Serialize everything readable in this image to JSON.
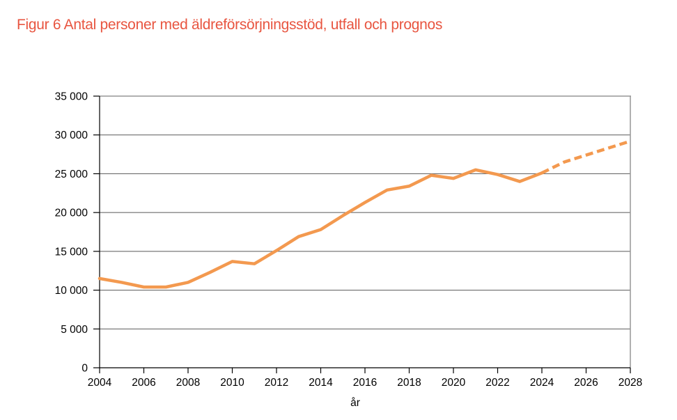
{
  "page": {
    "title": "Figur 6 Antal personer med äldreförsörjningsstöd, utfall och prognos"
  },
  "colors": {
    "title": "#E85540",
    "line": "#F3994F",
    "grid": "#595959",
    "frame": "#969696",
    "axis": "#000000",
    "background": "#FFFFFF"
  },
  "chart_data": {
    "type": "line",
    "title": "Figur 6 Antal personer med äldreförsörjningsstöd, utfall och prognos",
    "xlabel": "år",
    "ylabel": "",
    "xlim": [
      2004,
      2028
    ],
    "ylim": [
      0,
      35000
    ],
    "grid": true,
    "legend": false,
    "x_ticks": [
      2004,
      2006,
      2008,
      2010,
      2012,
      2014,
      2016,
      2018,
      2020,
      2022,
      2024,
      2026,
      2028
    ],
    "y_ticks": [
      0,
      5000,
      10000,
      15000,
      20000,
      25000,
      30000,
      35000
    ],
    "y_tick_labels": [
      "0",
      "5 000",
      "10 000",
      "15 000",
      "20 000",
      "25 000",
      "30 000",
      "35 000"
    ],
    "series": [
      {
        "name": "utfall",
        "style": "solid",
        "x": [
          2004,
          2005,
          2006,
          2007,
          2008,
          2009,
          2010,
          2011,
          2012,
          2013,
          2014,
          2015,
          2016,
          2017,
          2018,
          2019,
          2020,
          2021,
          2022,
          2023,
          2024
        ],
        "values": [
          11500,
          11000,
          10400,
          10400,
          11000,
          12300,
          13700,
          13400,
          15100,
          16900,
          17800,
          19600,
          21300,
          22900,
          23400,
          24800,
          24400,
          25500,
          24900,
          24000,
          25100
        ]
      },
      {
        "name": "prognos",
        "style": "dashed",
        "x": [
          2024,
          2025,
          2026,
          2027,
          2028
        ],
        "values": [
          25100,
          26500,
          27400,
          28300,
          29200
        ]
      }
    ]
  }
}
